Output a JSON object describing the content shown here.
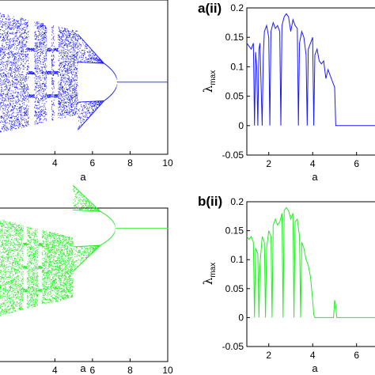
{
  "chart_data": [
    {
      "id": "a_i",
      "type": "scatter",
      "panel_label": "",
      "xlabel": "a",
      "ylabel": "",
      "xlim": [
        1,
        10
      ],
      "xticks": [
        4,
        6,
        8,
        10
      ],
      "color": "#1a1aff",
      "bifurcation": {
        "band_lo": 0.14,
        "band_hi": 0.92,
        "windows": [
          [
            2.6,
            2.9
          ],
          [
            3.55,
            3.8
          ],
          [
            3.95,
            4.15
          ]
        ],
        "merge_a": 5.2,
        "split_a": 6.6,
        "converge_a": 7.3,
        "fixed_y": 0.47,
        "branch_spread": 0.22,
        "sub_spread": 0.09
      }
    },
    {
      "id": "a_ii",
      "type": "line",
      "panel_label": "a(ii)",
      "xlabel": "a",
      "ylabel": "λ",
      "ylabel_sub": "max",
      "xlim": [
        1,
        7.2
      ],
      "ylim": [
        -0.05,
        0.2
      ],
      "xticks": [
        2,
        4,
        6
      ],
      "yticks": [
        -0.05,
        0,
        0.05,
        0.1,
        0.15,
        0.2
      ],
      "ytick_labels": [
        "-0.05",
        "0",
        "0.05",
        "0.1",
        "0.15",
        "0.2"
      ],
      "color": "#1a1aff",
      "x": [
        1.0,
        1.1,
        1.2,
        1.3,
        1.35,
        1.4,
        1.45,
        1.5,
        1.55,
        1.6,
        1.7,
        1.75,
        1.8,
        1.9,
        2.0,
        2.05,
        2.1,
        2.2,
        2.3,
        2.4,
        2.5,
        2.55,
        2.6,
        2.7,
        2.8,
        2.9,
        3.0,
        3.1,
        3.2,
        3.3,
        3.35,
        3.4,
        3.5,
        3.6,
        3.7,
        3.75,
        3.8,
        3.9,
        4.0,
        4.05,
        4.1,
        4.2,
        4.3,
        4.4,
        4.5,
        4.6,
        4.7,
        4.8,
        4.9,
        5.0,
        5.05,
        5.1,
        5.2,
        6.0,
        7.2
      ],
      "y": [
        0.14,
        0.135,
        0.13,
        0.14,
        0.0,
        0.125,
        0.1,
        0.0,
        0.13,
        0.14,
        0.0,
        0.12,
        0.16,
        0.17,
        0.15,
        0.0,
        0.16,
        0.175,
        0.165,
        0.17,
        0.16,
        0.0,
        0.17,
        0.185,
        0.19,
        0.185,
        0.16,
        0.18,
        0.17,
        0.165,
        0.0,
        0.14,
        0.16,
        0.15,
        0.12,
        0.0,
        0.13,
        0.14,
        0.15,
        0.0,
        0.12,
        0.13,
        0.11,
        0.105,
        0.11,
        0.08,
        0.095,
        0.085,
        0.075,
        0.065,
        0.0,
        0.0,
        0.0,
        0.0,
        0.0
      ]
    },
    {
      "id": "b_i",
      "type": "scatter",
      "panel_label": "",
      "xlabel": "a",
      "ylabel": "",
      "xlim": [
        1,
        10
      ],
      "xticks": [
        4,
        6,
        8,
        10
      ],
      "color": "#22ee22",
      "bifurcation": {
        "band_lo": 0.3,
        "band_hi": 0.93,
        "windows": [
          [
            2.3,
            2.5
          ],
          [
            3.1,
            3.3
          ]
        ],
        "merge_a": 4.95,
        "split_a": 6.4,
        "converge_a": 7.2,
        "fixed_y": 0.87,
        "branch_spread": 0.2,
        "sub_spread": 0.08
      }
    },
    {
      "id": "b_ii",
      "type": "line",
      "panel_label": "b(ii)",
      "xlabel": "a",
      "ylabel": "λ",
      "ylabel_sub": "max",
      "xlim": [
        1,
        7.2
      ],
      "ylim": [
        -0.05,
        0.2
      ],
      "xticks": [
        2,
        4,
        6
      ],
      "yticks": [
        -0.05,
        0,
        0.05,
        0.1,
        0.15,
        0.2
      ],
      "ytick_labels": [
        "-0.05",
        "0",
        "0.05",
        "0.1",
        "0.15",
        "0.2"
      ],
      "color": "#22ee22",
      "x": [
        1.0,
        1.1,
        1.2,
        1.3,
        1.35,
        1.4,
        1.5,
        1.55,
        1.6,
        1.7,
        1.8,
        1.85,
        1.9,
        2.0,
        2.1,
        2.15,
        2.2,
        2.3,
        2.4,
        2.5,
        2.6,
        2.65,
        2.7,
        2.8,
        2.9,
        3.0,
        3.1,
        3.15,
        3.2,
        3.3,
        3.4,
        3.45,
        3.5,
        3.6,
        3.7,
        3.8,
        3.9,
        4.0,
        4.05,
        4.1,
        4.95,
        5.0,
        5.05,
        5.1,
        5.2,
        6.0,
        7.2
      ],
      "y": [
        0.14,
        0.135,
        0.14,
        0.13,
        0.0,
        0.12,
        0.11,
        0.0,
        0.09,
        0.14,
        0.13,
        0.0,
        0.12,
        0.15,
        0.14,
        0.0,
        0.16,
        0.17,
        0.16,
        0.165,
        0.18,
        0.0,
        0.185,
        0.19,
        0.185,
        0.17,
        0.18,
        0.0,
        0.165,
        0.17,
        0.14,
        0.0,
        0.13,
        0.12,
        0.1,
        0.09,
        0.07,
        0.03,
        0.005,
        0.0,
        0.0,
        0.03,
        0.02,
        0.0,
        0.0,
        0.0,
        0.0
      ]
    }
  ]
}
